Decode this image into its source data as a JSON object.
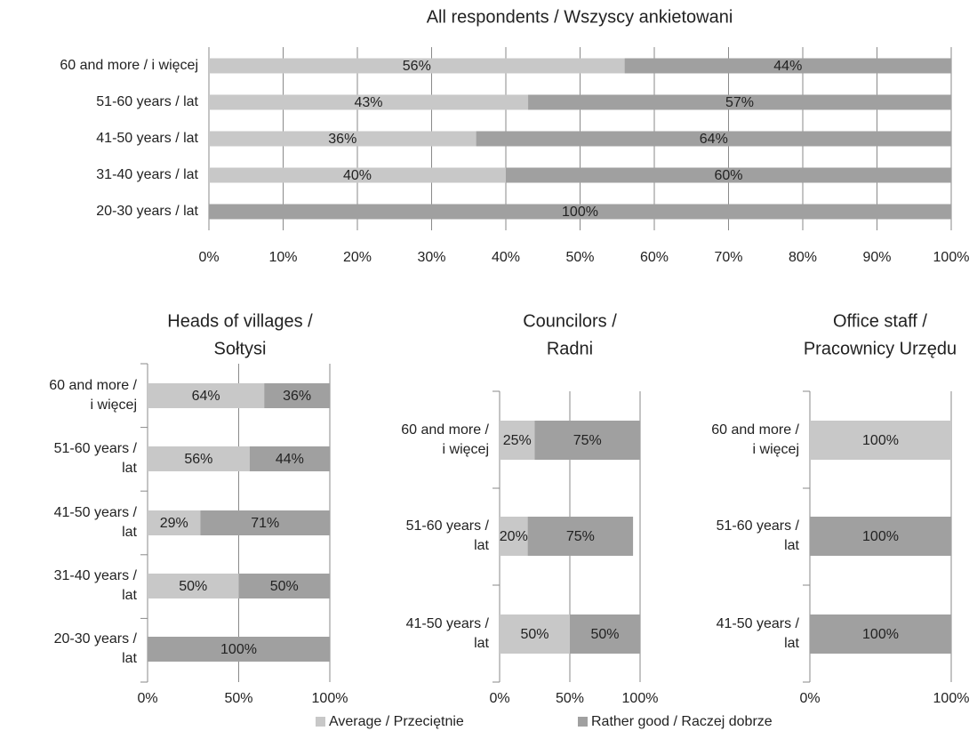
{
  "chart_data": [
    {
      "type": "bar",
      "orientation": "horizontal",
      "stacked": true,
      "title": "All respondents / Wszyscy ankietowani",
      "categories": [
        "60 and more / i więcej",
        "51-60 years / lat",
        "41-50 years / lat",
        "31-40 years / lat",
        "20-30 years / lat"
      ],
      "series": [
        {
          "values": [
            56,
            43,
            36,
            40,
            0
          ],
          "value_labels": [
            "56%",
            "43%",
            "36%",
            "40%",
            null
          ]
        },
        {
          "values": [
            44,
            57,
            64,
            60,
            100
          ],
          "value_labels": [
            "44%",
            "57%",
            "64%",
            "60%",
            "100%"
          ]
        }
      ],
      "xlim": [
        0,
        100
      ],
      "xticks": [
        {
          "value": 0,
          "label": "0%"
        },
        {
          "value": 10,
          "label": "10%"
        },
        {
          "value": 20,
          "label": "20%"
        },
        {
          "value": 30,
          "label": "30%"
        },
        {
          "value": 40,
          "label": "40%"
        },
        {
          "value": 50,
          "label": "50%"
        },
        {
          "value": 60,
          "label": "60%"
        },
        {
          "value": 70,
          "label": "70%"
        },
        {
          "value": 80,
          "label": "80%"
        },
        {
          "value": 90,
          "label": "90%"
        },
        {
          "value": 100,
          "label": "100%"
        }
      ],
      "grid": true
    },
    {
      "type": "bar",
      "orientation": "horizontal",
      "stacked": true,
      "title": "Heads of villages / Sołtysi",
      "categories": [
        "60 and more / i więcej",
        "51-60 years / lat",
        "41-50 years / lat",
        "31-40 years / lat",
        "20-30 years / lat"
      ],
      "series": [
        {
          "values": [
            64,
            56,
            29,
            50,
            0
          ],
          "value_labels": [
            "64%",
            "56%",
            "29%",
            "50%",
            null
          ]
        },
        {
          "values": [
            36,
            44,
            71,
            50,
            100
          ],
          "value_labels": [
            "36%",
            "44%",
            "71%",
            "50%",
            "100%"
          ]
        }
      ],
      "xlim": [
        0,
        100
      ],
      "xticks": [
        {
          "value": 0,
          "label": "0%"
        },
        {
          "value": 50,
          "label": "50%"
        },
        {
          "value": 100,
          "label": "100%"
        }
      ],
      "grid": true
    },
    {
      "type": "bar",
      "orientation": "horizontal",
      "stacked": true,
      "title": "Councilors / Radni",
      "categories": [
        "60 and more / i więcej",
        "51-60 years / lat",
        "41-50 years / lat"
      ],
      "series": [
        {
          "values": [
            25,
            20,
            50
          ],
          "value_labels": [
            "25%",
            "20%",
            "50%"
          ]
        },
        {
          "values": [
            75,
            75,
            50
          ],
          "value_labels": [
            "75%",
            "75%",
            "50%"
          ]
        }
      ],
      "xlim": [
        0,
        100
      ],
      "xticks": [
        {
          "value": 0,
          "label": "0%"
        },
        {
          "value": 50,
          "label": "50%"
        },
        {
          "value": 100,
          "label": "100%"
        }
      ],
      "grid": true
    },
    {
      "type": "bar",
      "orientation": "horizontal",
      "stacked": true,
      "title": "Office staff / Pracownicy Urzędu",
      "categories": [
        "60 and more / i więcej",
        "51-60 years / lat",
        "41-50 years / lat"
      ],
      "series": [
        {
          "values": [
            100,
            0,
            0
          ],
          "value_labels": [
            "100%",
            null,
            null
          ]
        },
        {
          "values": [
            0,
            100,
            100
          ],
          "value_labels": [
            null,
            "100%",
            "100%"
          ]
        }
      ],
      "xlim": [
        0,
        100
      ],
      "xticks": [
        {
          "value": 0,
          "label": "0%"
        },
        {
          "value": 100,
          "label": "100%"
        }
      ],
      "grid": true
    }
  ],
  "legend": {
    "entries": [
      {
        "name": "Average / Przeciętnie",
        "color": "#c8c8c8"
      },
      {
        "name": "Rather good / Raczej dobrze",
        "color": "#a0a0a0"
      }
    ]
  }
}
